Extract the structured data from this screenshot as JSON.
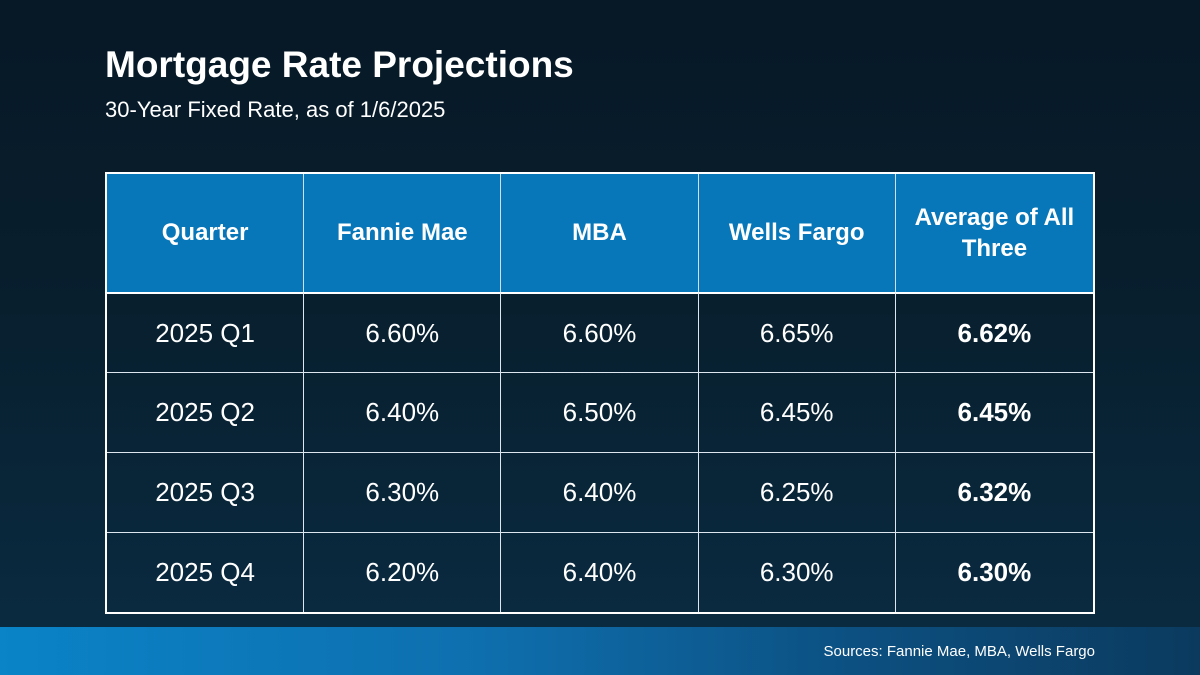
{
  "title": "Mortgage Rate Projections",
  "subtitle": "30-Year Fixed Rate, as of 1/6/2025",
  "chart_data": {
    "type": "table",
    "title": "Mortgage Rate Projections",
    "subtitle": "30-Year Fixed Rate, as of 1/6/2025",
    "columns": [
      "Quarter",
      "Fannie Mae",
      "MBA",
      "Wells Fargo",
      "Average of All Three"
    ],
    "rows": [
      [
        "2025 Q1",
        "6.60%",
        "6.60%",
        "6.65%",
        "6.62%"
      ],
      [
        "2025 Q2",
        "6.40%",
        "6.50%",
        "6.45%",
        "6.45%"
      ],
      [
        "2025 Q3",
        "6.30%",
        "6.40%",
        "6.25%",
        "6.32%"
      ],
      [
        "2025 Q4",
        "6.20%",
        "6.40%",
        "6.30%",
        "6.30%"
      ]
    ],
    "rows_numeric_pct": {
      "fannie_mae": [
        6.6,
        6.4,
        6.3,
        6.2
      ],
      "mba": [
        6.6,
        6.5,
        6.4,
        6.4
      ],
      "wells_fargo": [
        6.65,
        6.45,
        6.25,
        6.3
      ],
      "average_of_all_three": [
        6.62,
        6.45,
        6.32,
        6.3
      ]
    }
  },
  "footer": {
    "sources": "Sources: Fannie Mae, MBA, Wells Fargo"
  },
  "colors": {
    "header_blue": "#0777b9",
    "background_top": "#071826",
    "background_bottom": "#0a2c43",
    "footer_gradient_left": "#0a83c7",
    "footer_gradient_right": "#0b3a5e",
    "table_border": "#ffffff",
    "text": "#ffffff"
  }
}
